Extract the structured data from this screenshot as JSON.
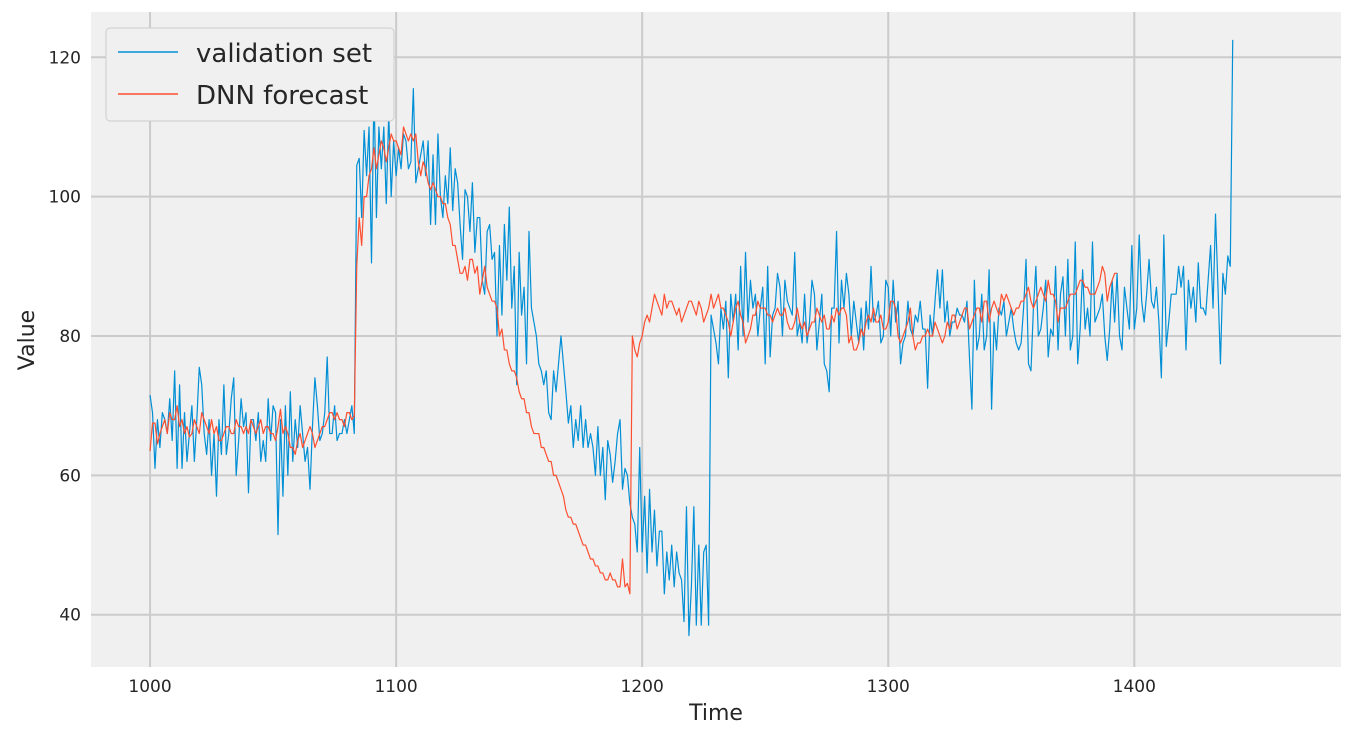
{
  "chart_data": {
    "type": "line",
    "title": "",
    "xlabel": "Time",
    "ylabel": "Value",
    "xlim": [
      976,
      1484
    ],
    "ylim": [
      32.5,
      126.5
    ],
    "xticks": [
      1000,
      1100,
      1200,
      1300,
      1400
    ],
    "yticks": [
      40,
      60,
      80,
      100,
      120
    ],
    "grid": true,
    "legend_position": "top-left",
    "colors": {
      "background": "#f0f0f0",
      "grid": "#cbcbcb",
      "validation": "#008fd5",
      "forecast": "#fc4f30"
    },
    "series": [
      {
        "name": "validation set",
        "x_start": 1000,
        "values": [
          71.5,
          69,
          61,
          68,
          64,
          69,
          68,
          66,
          71,
          65,
          75,
          61,
          73,
          61,
          69,
          62,
          66,
          70,
          62,
          68,
          75.5,
          73,
          66,
          63,
          68,
          60,
          66,
          57,
          68,
          63,
          73,
          63,
          66,
          71,
          74,
          60,
          65,
          71,
          67,
          69,
          57.5,
          68,
          68,
          65,
          69,
          62,
          65,
          62,
          71,
          65,
          70,
          69,
          51.5,
          68,
          57,
          70,
          60,
          72,
          62,
          68,
          64,
          70,
          66,
          62,
          64,
          58,
          67,
          74,
          70,
          65,
          66,
          69,
          77,
          66,
          66,
          70,
          65,
          66,
          66,
          68,
          66,
          68,
          70,
          66,
          104.5,
          105.5,
          97,
          109.5,
          103,
          110,
          90.5,
          115.5,
          97,
          110,
          104,
          110,
          99,
          112,
          100,
          108,
          103,
          107,
          104,
          109,
          108,
          104,
          105,
          115.5,
          102,
          104,
          106,
          108,
          103,
          108,
          96,
          106,
          96,
          109,
          100,
          97,
          103,
          99,
          107,
          98,
          104,
          102,
          96,
          91,
          101,
          100,
          95,
          102,
          92,
          97,
          97,
          88,
          86,
          95,
          96,
          91,
          92,
          80,
          93,
          83,
          96,
          88,
          98.5,
          84,
          90,
          73,
          92,
          83,
          87,
          76,
          95,
          84,
          82,
          80,
          76,
          75,
          73,
          75,
          69,
          68,
          75,
          72,
          76,
          80,
          76,
          72,
          67.5,
          70,
          64,
          68,
          65,
          70,
          64,
          68,
          64,
          66,
          64,
          60,
          67,
          60,
          64,
          56.5,
          65,
          63,
          59,
          62,
          66,
          68,
          58,
          61,
          60,
          56,
          54,
          53,
          49,
          64,
          49,
          57,
          46,
          58,
          49,
          55,
          47,
          52,
          52,
          43,
          49,
          45,
          50,
          44,
          49,
          46,
          45,
          39,
          55.5,
          37,
          44,
          55.5,
          38.5,
          50,
          38.5,
          49,
          50,
          38.5,
          83,
          81,
          79,
          76,
          84,
          81,
          85,
          74,
          86,
          82,
          86,
          78,
          90,
          80,
          92,
          82,
          88,
          84,
          86,
          80,
          84,
          87,
          76,
          90,
          77,
          83,
          84,
          89,
          87,
          80,
          88,
          85,
          84,
          83,
          92,
          80,
          82,
          79,
          86,
          79,
          82,
          88,
          86,
          78,
          82,
          86,
          76,
          75,
          72,
          84,
          84,
          95,
          79,
          88,
          84,
          89,
          86,
          80,
          85,
          82,
          79,
          84,
          78,
          85,
          81,
          90,
          82,
          83,
          85,
          79,
          80,
          88,
          87,
          80,
          88,
          82,
          85,
          76,
          79,
          80,
          85,
          81,
          80,
          83,
          82,
          85,
          81,
          81,
          72.5,
          83,
          80,
          85,
          89.5,
          84,
          89.5,
          82,
          85,
          80,
          82,
          82,
          84,
          83,
          83,
          82,
          85,
          77,
          69.5,
          88,
          78,
          80,
          86,
          78,
          80,
          89.5,
          69.5,
          82,
          78,
          84,
          83,
          85,
          80,
          82,
          84,
          81,
          79,
          78,
          79,
          84,
          91,
          76,
          75,
          84,
          90,
          80,
          81,
          84,
          88,
          77,
          81,
          80,
          90,
          78,
          86,
          88.5,
          80,
          91,
          78,
          80,
          93.5,
          76,
          81,
          89.5,
          81,
          84,
          80,
          93.5,
          82,
          83,
          84,
          86,
          80,
          76.5,
          81,
          88,
          82,
          89,
          80,
          78,
          87,
          84,
          81,
          93,
          81,
          84,
          94.5,
          85,
          82,
          86,
          91,
          85,
          84,
          87,
          82,
          74,
          94.5,
          78.5,
          82,
          86,
          86,
          86,
          90,
          87,
          90,
          78,
          88,
          84,
          87,
          82,
          90.5,
          84,
          84,
          83,
          88,
          93,
          84,
          97.5,
          87,
          76,
          89,
          86,
          91.5,
          90,
          122.5
        ]
      },
      {
        "name": "DNN forecast",
        "x_start": 1000,
        "values": [
          63.5,
          67.5,
          67.5,
          64.5,
          66,
          67,
          68,
          66,
          69,
          68,
          68,
          70,
          67,
          68,
          66,
          67,
          65.5,
          66,
          68,
          67,
          66,
          69,
          68,
          67,
          66,
          68,
          66,
          67,
          65,
          65,
          66,
          67,
          67,
          66,
          66,
          68,
          67,
          67,
          66,
          67,
          66,
          68,
          67,
          66,
          67,
          68,
          66,
          67,
          67,
          66,
          66,
          65,
          67,
          69.5,
          66,
          67,
          66,
          64,
          64,
          63,
          65,
          66,
          64,
          65,
          66,
          67,
          66,
          64,
          65,
          66,
          67,
          67,
          68,
          69,
          69,
          68,
          69,
          68,
          68,
          67,
          69,
          69,
          68,
          68.5,
          90,
          97,
          93,
          100,
          100,
          103,
          104,
          107,
          104,
          106,
          108,
          107,
          105,
          107,
          109,
          108,
          108,
          107,
          106,
          110,
          109,
          108,
          109,
          108,
          109,
          105,
          103,
          105,
          104,
          102,
          101,
          102,
          101,
          100,
          100,
          99,
          99,
          97,
          96,
          93,
          93,
          91,
          89,
          89,
          90,
          88,
          91,
          91,
          89,
          90,
          86,
          88,
          90,
          87,
          86,
          85,
          85,
          84,
          80,
          81,
          78,
          78,
          76,
          75,
          75,
          74,
          72,
          71,
          71,
          69,
          69,
          67,
          66,
          66,
          66,
          64,
          64,
          63,
          62,
          62,
          60,
          60,
          59,
          58,
          57,
          55,
          54,
          54,
          53,
          53,
          52,
          51,
          50,
          50,
          49,
          48,
          48,
          47,
          47,
          46,
          46,
          45,
          45,
          46,
          45,
          45,
          44,
          44,
          48,
          44,
          44.5,
          43,
          80,
          78,
          77,
          79,
          80,
          82,
          83,
          82,
          84,
          86,
          85,
          84,
          83,
          86,
          84,
          85,
          85,
          84,
          83,
          84,
          82,
          83,
          84,
          85,
          85,
          84,
          83,
          85,
          84,
          82,
          83,
          84,
          86,
          84,
          85,
          86,
          84,
          84,
          83,
          82,
          80,
          82,
          84,
          85,
          83,
          82,
          79,
          80,
          81,
          83,
          83,
          85,
          84,
          84,
          84,
          83,
          83,
          82,
          83,
          84,
          83,
          83,
          84,
          82,
          81,
          81,
          82,
          84,
          82,
          81,
          82,
          80,
          81,
          82,
          82,
          84,
          83,
          82,
          83,
          81,
          81,
          83,
          82,
          84,
          83,
          84,
          84,
          83,
          79,
          80,
          78,
          78,
          79,
          81,
          80,
          82,
          83,
          82,
          84,
          82,
          82,
          83,
          81,
          81,
          82,
          85,
          85,
          84,
          80,
          79,
          80,
          81,
          82,
          84,
          80,
          78,
          79,
          79,
          80,
          80,
          81,
          80,
          80,
          82,
          81,
          80,
          79,
          80,
          82,
          81,
          83,
          83,
          81,
          82,
          83,
          84,
          84,
          81,
          82,
          83,
          84,
          84,
          82,
          85,
          85,
          82,
          84,
          85,
          84,
          83,
          86,
          85,
          86,
          85,
          84,
          83,
          84,
          84,
          85,
          85,
          86,
          87,
          85,
          84,
          85,
          86,
          87,
          86,
          85,
          88,
          86,
          86,
          85,
          82,
          84,
          84,
          84,
          85,
          86,
          86,
          86,
          87,
          88,
          88,
          87,
          87,
          86,
          86,
          86,
          87,
          88,
          90,
          89,
          85,
          87,
          88,
          89,
          89
        ]
      }
    ]
  }
}
